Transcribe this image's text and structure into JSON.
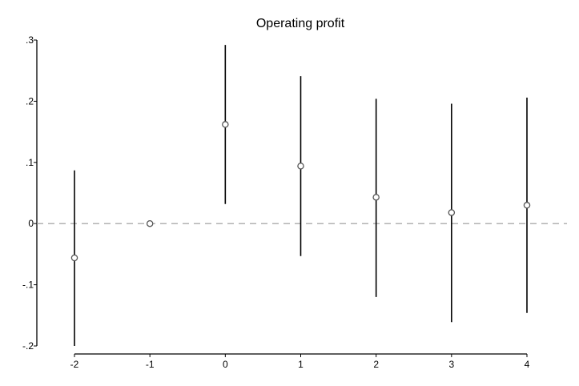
{
  "chart_data": {
    "type": "scatter",
    "title": "Operating profit",
    "xlabel": "",
    "ylabel": "",
    "x_ticks": [
      "-2",
      "-1",
      "0",
      "1",
      "2",
      "3",
      "4"
    ],
    "y_ticks": [
      ".3",
      ".2",
      ".1",
      "0",
      "-.1",
      "-.2"
    ],
    "ylim": [
      -0.2,
      0.3
    ],
    "xlim": [
      -2,
      4
    ],
    "reference_line": 0,
    "grid": false,
    "legend": "none",
    "series": [
      {
        "points": [
          {
            "x": -2,
            "y": -0.056,
            "ci_low": -0.2,
            "ci_high": 0.087
          },
          {
            "x": -1,
            "y": 0.0,
            "ci_low": null,
            "ci_high": null
          },
          {
            "x": 0,
            "y": 0.162,
            "ci_low": 0.032,
            "ci_high": 0.292
          },
          {
            "x": 1,
            "y": 0.094,
            "ci_low": -0.053,
            "ci_high": 0.241
          },
          {
            "x": 2,
            "y": 0.043,
            "ci_low": -0.12,
            "ci_high": 0.204
          },
          {
            "x": 3,
            "y": 0.018,
            "ci_low": -0.161,
            "ci_high": 0.196
          },
          {
            "x": 4,
            "y": 0.03,
            "ci_low": -0.146,
            "ci_high": 0.206
          }
        ]
      }
    ],
    "colors": {
      "marker": "#555555",
      "ci_line": "#000000",
      "ref_line": "#999999",
      "axis": "#000000"
    }
  }
}
